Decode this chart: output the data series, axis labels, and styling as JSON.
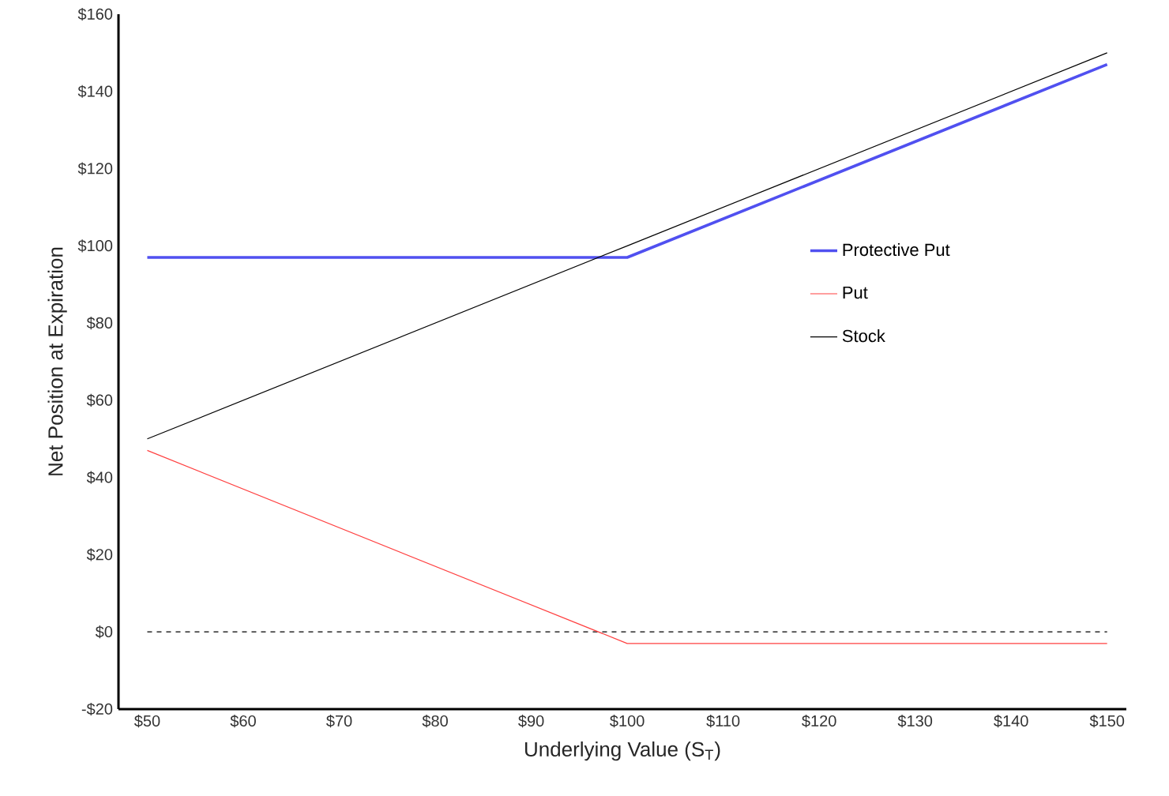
{
  "chart_data": {
    "type": "line",
    "xlabel": "Underlying Value (S$_{T}$)",
    "ylabel": "Net Position at Expiration",
    "x": [
      50,
      100,
      150
    ],
    "series": [
      {
        "name": "Protective Put",
        "color": "#5050f0",
        "values": [
          97,
          97,
          147
        ]
      },
      {
        "name": "Put",
        "color": "#ff4040",
        "values": [
          47,
          -3,
          -3
        ]
      },
      {
        "name": "Stock",
        "color": "#000000",
        "values": [
          50,
          100,
          150
        ]
      }
    ],
    "xlim": [
      47,
      152
    ],
    "ylim": [
      -20,
      160
    ],
    "xticks": [
      {
        "value": 50,
        "label": "$50"
      },
      {
        "value": 60,
        "label": "$60"
      },
      {
        "value": 70,
        "label": "$70"
      },
      {
        "value": 80,
        "label": "$80"
      },
      {
        "value": 90,
        "label": "$90"
      },
      {
        "value": 100,
        "label": "$100"
      },
      {
        "value": 110,
        "label": "$110"
      },
      {
        "value": 120,
        "label": "$120"
      },
      {
        "value": 130,
        "label": "$130"
      },
      {
        "value": 140,
        "label": "$140"
      },
      {
        "value": 150,
        "label": "$150"
      }
    ],
    "yticks": [
      {
        "value": -20,
        "label": "-$20"
      },
      {
        "value": 0,
        "label": "$0"
      },
      {
        "value": 20,
        "label": "$20"
      },
      {
        "value": 40,
        "label": "$40"
      },
      {
        "value": 60,
        "label": "$60"
      },
      {
        "value": 80,
        "label": "$80"
      },
      {
        "value": 100,
        "label": "$100"
      },
      {
        "value": 120,
        "label": "$120"
      },
      {
        "value": 140,
        "label": "$140"
      },
      {
        "value": 160,
        "label": "$160"
      }
    ],
    "ref_lines": [
      {
        "axis": "y",
        "value": 0,
        "color": "#000000",
        "line_style": "dashed"
      }
    ],
    "legend": "right",
    "grid": false,
    "marker": "none",
    "line_style": "solid"
  }
}
